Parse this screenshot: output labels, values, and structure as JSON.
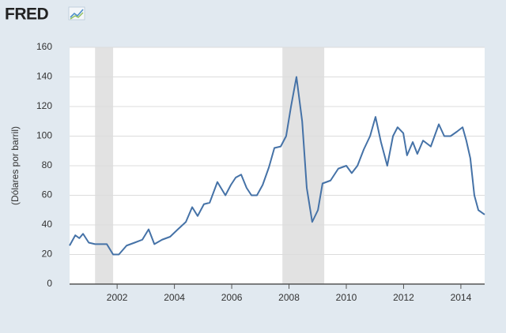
{
  "logo": "FRED",
  "chart_data": {
    "type": "line",
    "y_label": "(Dólares por barril)",
    "color": "#4572a7",
    "x": [
      2000.34,
      2000.54,
      2000.68,
      2000.81,
      2001.01,
      2001.23,
      2001.64,
      2001.86,
      2002.06,
      2002.33,
      2002.61,
      2002.88,
      2003.1,
      2003.3,
      2003.57,
      2003.85,
      2004.12,
      2004.4,
      2004.62,
      2004.81,
      2005.03,
      2005.23,
      2005.5,
      2005.78,
      2005.97,
      2006.14,
      2006.33,
      2006.52,
      2006.69,
      2006.88,
      2007.08,
      2007.3,
      2007.49,
      2007.71,
      2007.9,
      2008.07,
      2008.26,
      2008.46,
      2008.62,
      2008.81,
      2009.01,
      2009.17,
      2009.45,
      2009.72,
      2010.0,
      2010.19,
      2010.39,
      2010.61,
      2010.83,
      2011.02,
      2011.21,
      2011.43,
      2011.63,
      2011.79,
      2011.99,
      2012.12,
      2012.32,
      2012.48,
      2012.68,
      2012.95,
      2013.23,
      2013.42,
      2013.64,
      2013.86,
      2014.06,
      2014.19,
      2014.33,
      2014.47,
      2014.61,
      2014.83
    ],
    "values": [
      26,
      33,
      31,
      34,
      28,
      27,
      27,
      20,
      20,
      26,
      28,
      30,
      37,
      27,
      30,
      32,
      37,
      42,
      52,
      46,
      54,
      55,
      69,
      60,
      67,
      72,
      74,
      65,
      60,
      60,
      67,
      79,
      92,
      93,
      100,
      120,
      140,
      110,
      65,
      42,
      50,
      68,
      70,
      78,
      80,
      75,
      80,
      91,
      100,
      113,
      96,
      80,
      100,
      106,
      102,
      87,
      96,
      88,
      97,
      93,
      108,
      100,
      100,
      103,
      106,
      97,
      85,
      60,
      50,
      47
    ],
    "shaded_periods": [
      [
        2001.23,
        2001.86
      ],
      [
        2007.77,
        2009.23
      ]
    ],
    "xlim": [
      2000.34,
      2014.83
    ],
    "xticks": [
      2002,
      2004,
      2006,
      2008,
      2010,
      2012,
      2014
    ],
    "ylim": [
      0,
      160
    ],
    "yticks": [
      0,
      20,
      40,
      60,
      80,
      100,
      120,
      140,
      160
    ],
    "grid": true
  }
}
